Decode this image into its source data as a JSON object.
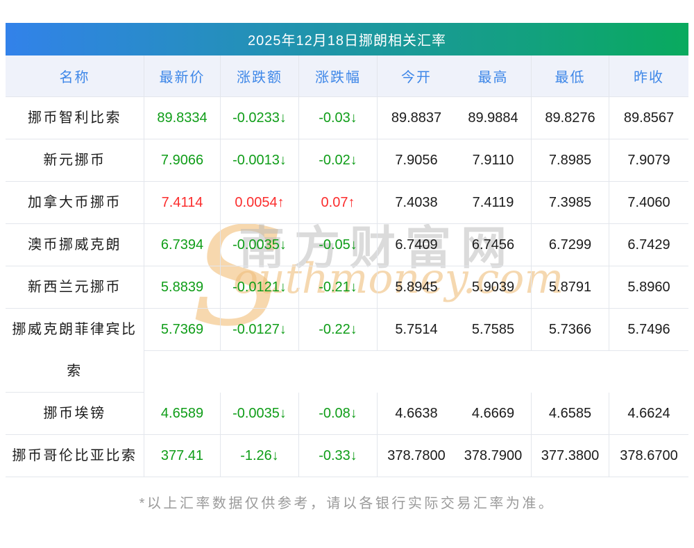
{
  "header": {
    "title": "2025年12月18日挪朗相关汇率"
  },
  "table": {
    "columns": [
      "名称",
      "最新价",
      "涨跌额",
      "涨跌幅",
      "今开",
      "最高",
      "最低",
      "昨收"
    ],
    "rows": [
      {
        "cells": [
          "挪币智利比索",
          "89.8334",
          "-0.0233↓",
          "-0.03↓",
          "89.8837",
          "89.9884",
          "89.8276",
          "89.8567"
        ],
        "trend": "down"
      },
      {
        "cells": [
          "新元挪币",
          "7.9066",
          "-0.0013↓",
          "-0.02↓",
          "7.9056",
          "7.9110",
          "7.8985",
          "7.9079"
        ],
        "trend": "down"
      },
      {
        "cells": [
          "加拿大币挪币",
          "7.4114",
          "0.0054↑",
          "0.07↑",
          "7.4038",
          "7.4119",
          "7.3985",
          "7.4060"
        ],
        "trend": "up"
      },
      {
        "cells": [
          "澳币挪威克朗",
          "6.7394",
          "-0.0035↓",
          "-0.05↓",
          "6.7409",
          "6.7456",
          "6.7299",
          "6.7429"
        ],
        "trend": "down"
      },
      {
        "cells": [
          "新西兰元挪币",
          "5.8839",
          "-0.0121↓",
          "-0.21↓",
          "5.8945",
          "5.9039",
          "5.8791",
          "5.8960"
        ],
        "trend": "down"
      },
      {
        "cells": [
          "挪威克朗菲律宾比索",
          "5.7369",
          "-0.0127↓",
          "-0.22↓",
          "5.7514",
          "5.7585",
          "5.7366",
          "5.7496"
        ],
        "trend": "down",
        "wrap": true
      },
      {
        "cells": [
          "挪币埃镑",
          "4.6589",
          "-0.0035↓",
          "-0.08↓",
          "4.6638",
          "4.6669",
          "4.6585",
          "4.6624"
        ],
        "trend": "down"
      },
      {
        "cells": [
          "挪币哥伦比亚比索",
          "377.41",
          "-1.26↓",
          "-0.33↓",
          "378.7800",
          "378.7900",
          "377.3800",
          "378.6700"
        ],
        "trend": "down"
      }
    ]
  },
  "footer": {
    "note": "*以上汇率数据仅供参考，请以各银行实际交易汇率为准。"
  },
  "watermark": {
    "initial": "S",
    "cn_text": "南方财富网",
    "en_text": "outhmoney.com"
  },
  "colors": {
    "up_red": "#fb2d2d",
    "down_green": "#0f9d18",
    "header_text_blue": "#3e87e8",
    "title_gradient_start": "#3282ea",
    "title_gradient_end": "#09aa5e",
    "header_row_bg": "#eff2fa"
  }
}
